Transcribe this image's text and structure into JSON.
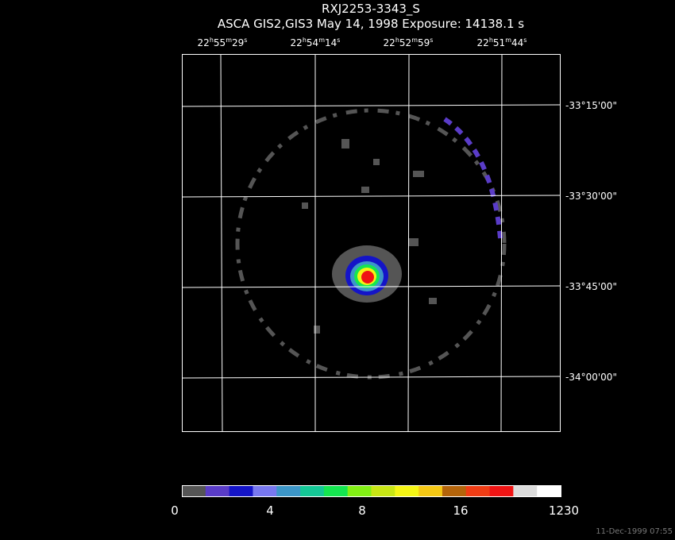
{
  "header": {
    "title": "RXJ2253-3343_S",
    "subtitle": "ASCA GIS2,GIS3 May 14, 1998 Exposure: 14138.1 s"
  },
  "ra_labels": [
    [
      "22",
      "h",
      "55",
      "m",
      "29",
      "s"
    ],
    [
      "22",
      "h",
      "54",
      "m",
      "14",
      "s"
    ],
    [
      "22",
      "h",
      "52",
      "m",
      "59",
      "s"
    ],
    [
      "22",
      "h",
      "51",
      "m",
      "44",
      "s"
    ]
  ],
  "dec_labels": [
    "-33°15'00\"",
    "-33°30'00\"",
    "-33°45'00\"",
    "-34°00'00\""
  ],
  "colorbar": {
    "colors": [
      "#555555",
      "#5a3cc8",
      "#1414c8",
      "#7878f0",
      "#3c96c8",
      "#14c896",
      "#14e650",
      "#82f014",
      "#c8e614",
      "#f5f514",
      "#f5c814",
      "#b4640a",
      "#f03c14",
      "#f01414",
      "#dcdcdc",
      "#ffffff"
    ],
    "labels": [
      "0",
      "4",
      "8",
      "16",
      "1230"
    ]
  },
  "footer": {
    "timestamp": "11-Dec-1999 07:55"
  }
}
